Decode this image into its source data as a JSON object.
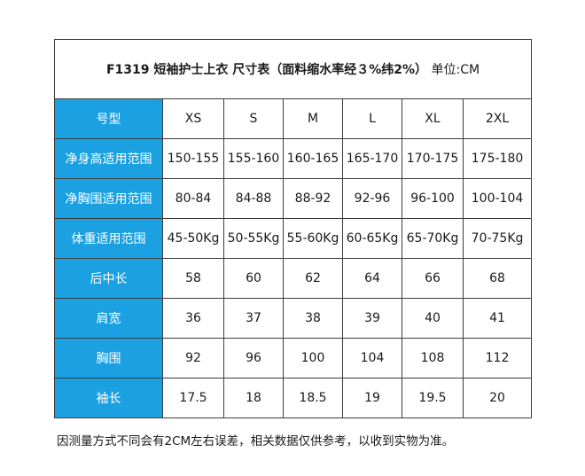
{
  "title": {
    "bold_text": "F1319  短袖护士上衣  尺寸表（面料缩水率经３%纬2%）",
    "unit_text": "单位:CM"
  },
  "table": {
    "rows": [
      {
        "label": "号型",
        "cells": [
          "XS",
          "S",
          "M",
          "L",
          "XL",
          "2XL"
        ]
      },
      {
        "label": "净身高适用范围",
        "cells": [
          "150-155",
          "155-160",
          "160-165",
          "165-170",
          "170-175",
          "175-180"
        ]
      },
      {
        "label": "净胸围适用范围",
        "cells": [
          "80-84",
          "84-88",
          "88-92",
          "92-96",
          "96-100",
          "100-104"
        ]
      },
      {
        "label": "体重适用范围",
        "cells": [
          "45-50Kg",
          "50-55Kg",
          "55-60Kg",
          "60-65Kg",
          "65-70Kg",
          "70-75Kg"
        ]
      },
      {
        "label": "后中长",
        "cells": [
          "58",
          "60",
          "62",
          "64",
          "66",
          "68"
        ]
      },
      {
        "label": "肩宽",
        "cells": [
          "36",
          "37",
          "38",
          "39",
          "40",
          "41"
        ]
      },
      {
        "label": "胸围",
        "cells": [
          "92",
          "96",
          "100",
          "104",
          "108",
          "112"
        ]
      },
      {
        "label": "袖长",
        "cells": [
          "17.5",
          "18",
          "18.5",
          "19",
          "19.5",
          "20"
        ]
      }
    ]
  },
  "note": "因测量方式不同会有2CM左右误差，相关数据仅供参考，以收到实物为准。",
  "colors": {
    "header_bg": "#1ba1e2",
    "header_text": "#ffffff",
    "border": "#3c3c3c"
  }
}
